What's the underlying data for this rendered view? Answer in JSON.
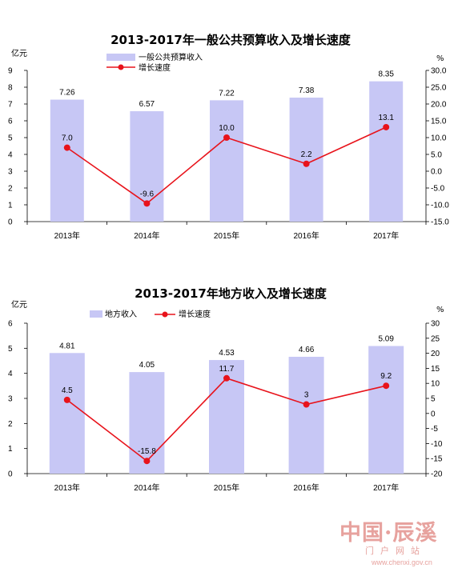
{
  "chart_data": [
    {
      "type": "bar+line",
      "title": "2013-2017年一般公共预算收入及增长速度",
      "y_left_unit": "亿元",
      "y_right_unit": "%",
      "categories": [
        "2013年",
        "2014年",
        "2015年",
        "2016年",
        "2017年"
      ],
      "left_ticks": [
        "0",
        "1",
        "2",
        "3",
        "4",
        "5",
        "6",
        "7",
        "8",
        "9"
      ],
      "right_ticks": [
        "-15.0",
        "-10.0",
        "-5.0",
        "0.0",
        "5.0",
        "10.0",
        "15.0",
        "20.0",
        "25.0",
        "30.0"
      ],
      "ylim_left": [
        0,
        9
      ],
      "ylim_right": [
        -15,
        30
      ],
      "series": [
        {
          "name": "一般公共预算收入",
          "kind": "bar",
          "axis": "left",
          "color": "#c7c7f5",
          "values": [
            7.26,
            6.57,
            7.22,
            7.38,
            8.35
          ],
          "labels": [
            "7.26",
            "6.57",
            "7.22",
            "7.38",
            "8.35"
          ]
        },
        {
          "name": "增长速度",
          "kind": "line",
          "axis": "right",
          "color": "#e8131b",
          "values": [
            7.0,
            -9.6,
            10.0,
            2.2,
            13.1
          ],
          "labels": [
            "7.0",
            "-9.6",
            "10.0",
            "2.2",
            "13.1"
          ]
        }
      ]
    },
    {
      "type": "bar+line",
      "title": "2013-2017年地方收入及增长速度",
      "y_left_unit": "亿元",
      "y_right_unit": "%",
      "categories": [
        "2013年",
        "2014年",
        "2015年",
        "2016年",
        "2017年"
      ],
      "left_ticks": [
        "0",
        "1",
        "2",
        "3",
        "4",
        "5",
        "6"
      ],
      "right_ticks": [
        "-20",
        "-15",
        "-10",
        "-5",
        "0",
        "5",
        "10",
        "15",
        "20",
        "25",
        "30"
      ],
      "ylim_left": [
        0,
        6
      ],
      "ylim_right": [
        -20,
        30
      ],
      "series": [
        {
          "name": "地方收入",
          "kind": "bar",
          "axis": "left",
          "color": "#c7c7f5",
          "values": [
            4.81,
            4.05,
            4.53,
            4.66,
            5.09
          ],
          "labels": [
            "4.81",
            "4.05",
            "4.53",
            "4.66",
            "5.09"
          ]
        },
        {
          "name": "增长速度",
          "kind": "line",
          "axis": "right",
          "color": "#e8131b",
          "values": [
            4.5,
            -15.8,
            11.7,
            3,
            9.2
          ],
          "labels": [
            "4.5",
            "-15.8",
            "11.7",
            "3",
            "9.2"
          ]
        }
      ]
    }
  ],
  "watermark": {
    "main": "中国·辰溪",
    "sub": "门户网站",
    "url": "www.chenxi.gov.cn"
  }
}
